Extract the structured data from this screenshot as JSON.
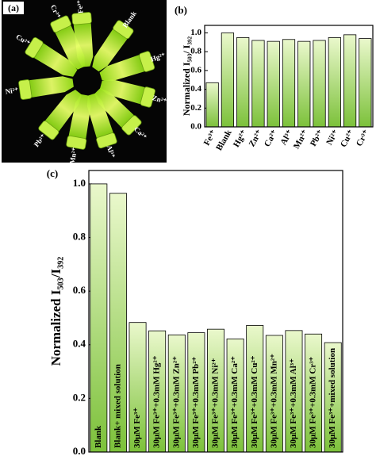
{
  "photo": {
    "panel_label": "(a)",
    "tube_labels": [
      "Fe³⁺",
      "Blank",
      "Hg²⁺",
      "Zn²⁺",
      "Ca²⁺",
      "Al³⁺",
      "Mn²⁺",
      "Pb²⁺",
      "Ni²⁺",
      "Cu²⁺",
      "Cr³⁺"
    ]
  },
  "chart_data": [
    {
      "type": "bar",
      "panel_label": "(b)",
      "ylabel": "Normalized I₅₀₃/ I₃₉₂",
      "categories": [
        "Fe³⁺",
        "Blank",
        "Hg²⁺",
        "Zn²⁺",
        "Ca²⁺",
        "Al³⁺",
        "Mn²⁺",
        "Pb²⁺",
        "Ni²⁺",
        "Cu²⁺",
        "Cr³⁺"
      ],
      "values": [
        0.47,
        1.0,
        0.95,
        0.92,
        0.91,
        0.93,
        0.91,
        0.92,
        0.95,
        0.98,
        0.94
      ],
      "color": "#7cc13a",
      "ylim": [
        0,
        1.08
      ],
      "yticks": [
        {
          "value": 0,
          "label": "0.0"
        },
        0.2,
        0.4,
        0.6,
        0.8,
        {
          "value": 1,
          "label": "1.0"
        }
      ]
    },
    {
      "type": "bar",
      "panel_label": "(c)",
      "ylabel": "Normalized I₅₀₃/I₃₉₂",
      "categories": [
        "Blank",
        "Blank+ mixed solution",
        "30μM Fe³⁺",
        "30μM Fe³⁺+0.3mM Hg²⁺",
        "30μM Fe³⁺+0.3mM Zn²⁺",
        "30μM Fe³⁺+0.3mM Pb²⁺",
        "30μM Fe³⁺+0.3mM Ni²⁺",
        "30μM Fe³⁺+0.3mM Ca²⁺",
        "30μM Fe³⁺+0.3mM Cu²⁺",
        "30μM Fe³⁺+0.3mM Mn²⁺",
        "30μM Fe³⁺+0.3mM Al³⁺",
        "30μM Fe³⁺+0.3mM Cr³⁺",
        "30μM Fe³⁺+mixed solution"
      ],
      "values": [
        1.0,
        0.965,
        0.483,
        0.452,
        0.437,
        0.445,
        0.458,
        0.422,
        0.472,
        0.435,
        0.453,
        0.44,
        0.408
      ],
      "color": "#7cc13a",
      "ylim": [
        0,
        1.05
      ],
      "yticks": [
        {
          "value": 0,
          "label": "0.0"
        },
        0.2,
        0.4,
        0.6,
        0.8,
        {
          "value": 1,
          "label": "1.0"
        }
      ]
    }
  ]
}
